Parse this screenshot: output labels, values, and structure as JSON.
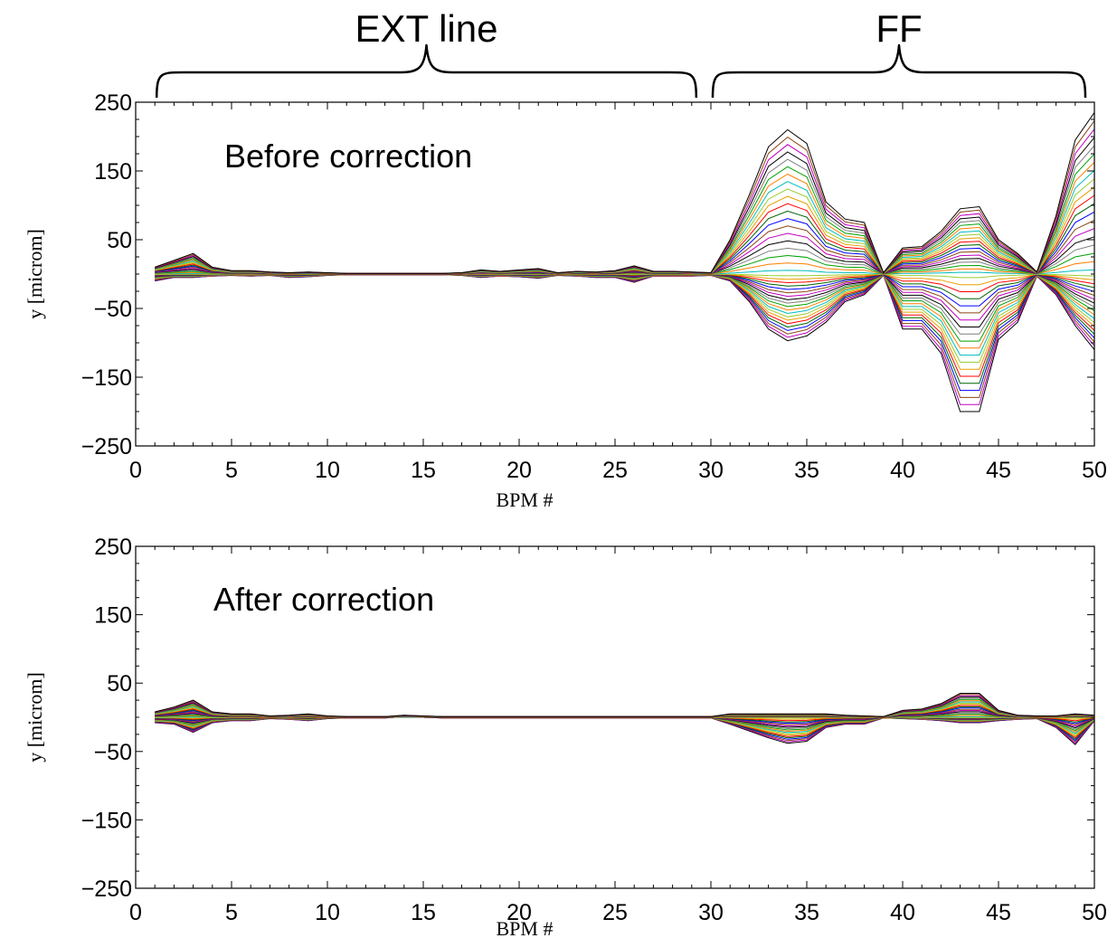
{
  "regions": [
    {
      "label": "EXT line",
      "from_bpm": 1,
      "to_bpm": 29
    },
    {
      "label": "FF",
      "from_bpm": 30,
      "to_bpm": 50
    }
  ],
  "chart_data": [
    {
      "type": "line",
      "annotation": "Before correction",
      "xlabel": "BPM #",
      "ylabel": "y [microm]",
      "xlim": [
        0,
        50
      ],
      "ylim": [
        -250,
        250
      ],
      "xticks": [
        0,
        5,
        10,
        15,
        20,
        25,
        30,
        35,
        40,
        45,
        50
      ],
      "yticks": [
        250,
        150,
        50,
        -50,
        -150,
        -250
      ],
      "n_traces": 40,
      "series_colors": [
        "#000000",
        "#ff0000",
        "#00a000",
        "#0000ff",
        "#00bcbc",
        "#c000c0",
        "#e8a000",
        "#7f7f7f",
        "#006400",
        "#ff7f00",
        "#8b4513",
        "#9acd32"
      ],
      "envelope": {
        "x": [
          1,
          2,
          3,
          4,
          5,
          6,
          7,
          8,
          9,
          10,
          11,
          12,
          13,
          14,
          15,
          16,
          17,
          18,
          19,
          20,
          21,
          22,
          23,
          24,
          25,
          26,
          27,
          28,
          29,
          30,
          31,
          32,
          33,
          34,
          35,
          36,
          37,
          38,
          39,
          40,
          41,
          42,
          43,
          44,
          45,
          46,
          47,
          48,
          49,
          50
        ],
        "y": [
          10,
          20,
          30,
          10,
          5,
          5,
          3,
          2,
          3,
          2,
          1,
          1,
          1,
          1,
          1,
          1,
          2,
          6,
          4,
          6,
          8,
          2,
          4,
          3,
          5,
          12,
          4,
          4,
          3,
          2,
          50,
          115,
          185,
          210,
          190,
          105,
          80,
          75,
          2,
          38,
          40,
          62,
          95,
          98,
          50,
          30,
          3,
          85,
          195,
          235
        ]
      },
      "envelope_min": [
        -10,
        -5,
        -5,
        -3,
        -2,
        -3,
        -2,
        -5,
        -4,
        -2,
        -1,
        -1,
        -1,
        -1,
        -1,
        -1,
        -2,
        -5,
        -3,
        -4,
        -6,
        -2,
        -3,
        -5,
        -5,
        -12,
        -3,
        -3,
        -3,
        -2,
        -10,
        -40,
        -80,
        -97,
        -90,
        -70,
        -40,
        -30,
        -2,
        -80,
        -80,
        -115,
        -200,
        -200,
        -95,
        -70,
        -3,
        -30,
        -75,
        -110
      ]
    },
    {
      "type": "line",
      "annotation": "After correction",
      "xlabel": "BPM #",
      "ylabel": "y [microm]",
      "xlim": [
        0,
        50
      ],
      "ylim": [
        -250,
        250
      ],
      "xticks": [
        0,
        5,
        10,
        15,
        20,
        25,
        30,
        35,
        40,
        45,
        50
      ],
      "yticks": [
        250,
        150,
        50,
        -50,
        -150,
        -250
      ],
      "n_traces": 40,
      "series_colors": [
        "#000000",
        "#ff0000",
        "#00a000",
        "#0000ff",
        "#00bcbc",
        "#c000c0",
        "#e8a000",
        "#7f7f7f",
        "#006400",
        "#ff7f00",
        "#8b4513",
        "#9acd32"
      ],
      "envelope": {
        "x": [
          1,
          2,
          3,
          4,
          5,
          6,
          7,
          8,
          9,
          10,
          11,
          12,
          13,
          14,
          15,
          16,
          17,
          18,
          19,
          20,
          21,
          22,
          23,
          24,
          25,
          26,
          27,
          28,
          29,
          30,
          31,
          32,
          33,
          34,
          35,
          36,
          37,
          38,
          39,
          40,
          41,
          42,
          43,
          44,
          45,
          46,
          47,
          48,
          49,
          50
        ],
        "y": [
          8,
          15,
          25,
          8,
          5,
          5,
          2,
          3,
          5,
          2,
          1,
          1,
          1,
          3,
          2,
          1,
          1,
          1,
          1,
          1,
          1,
          1,
          1,
          1,
          1,
          1,
          1,
          1,
          1,
          1,
          5,
          5,
          5,
          5,
          5,
          5,
          3,
          2,
          1,
          10,
          12,
          20,
          35,
          35,
          10,
          3,
          2,
          2,
          5,
          3
        ]
      },
      "envelope_min": [
        -8,
        -10,
        -22,
        -8,
        -5,
        -5,
        -2,
        -3,
        -5,
        -2,
        -1,
        -1,
        -1,
        1,
        0,
        -1,
        -1,
        -1,
        -1,
        -1,
        -1,
        -1,
        -1,
        -1,
        -1,
        -1,
        -1,
        -1,
        -1,
        -1,
        -10,
        -20,
        -30,
        -38,
        -35,
        -15,
        -10,
        -10,
        -1,
        -2,
        -3,
        -5,
        -8,
        -8,
        -5,
        -3,
        -2,
        -15,
        -40,
        -5
      ]
    }
  ]
}
